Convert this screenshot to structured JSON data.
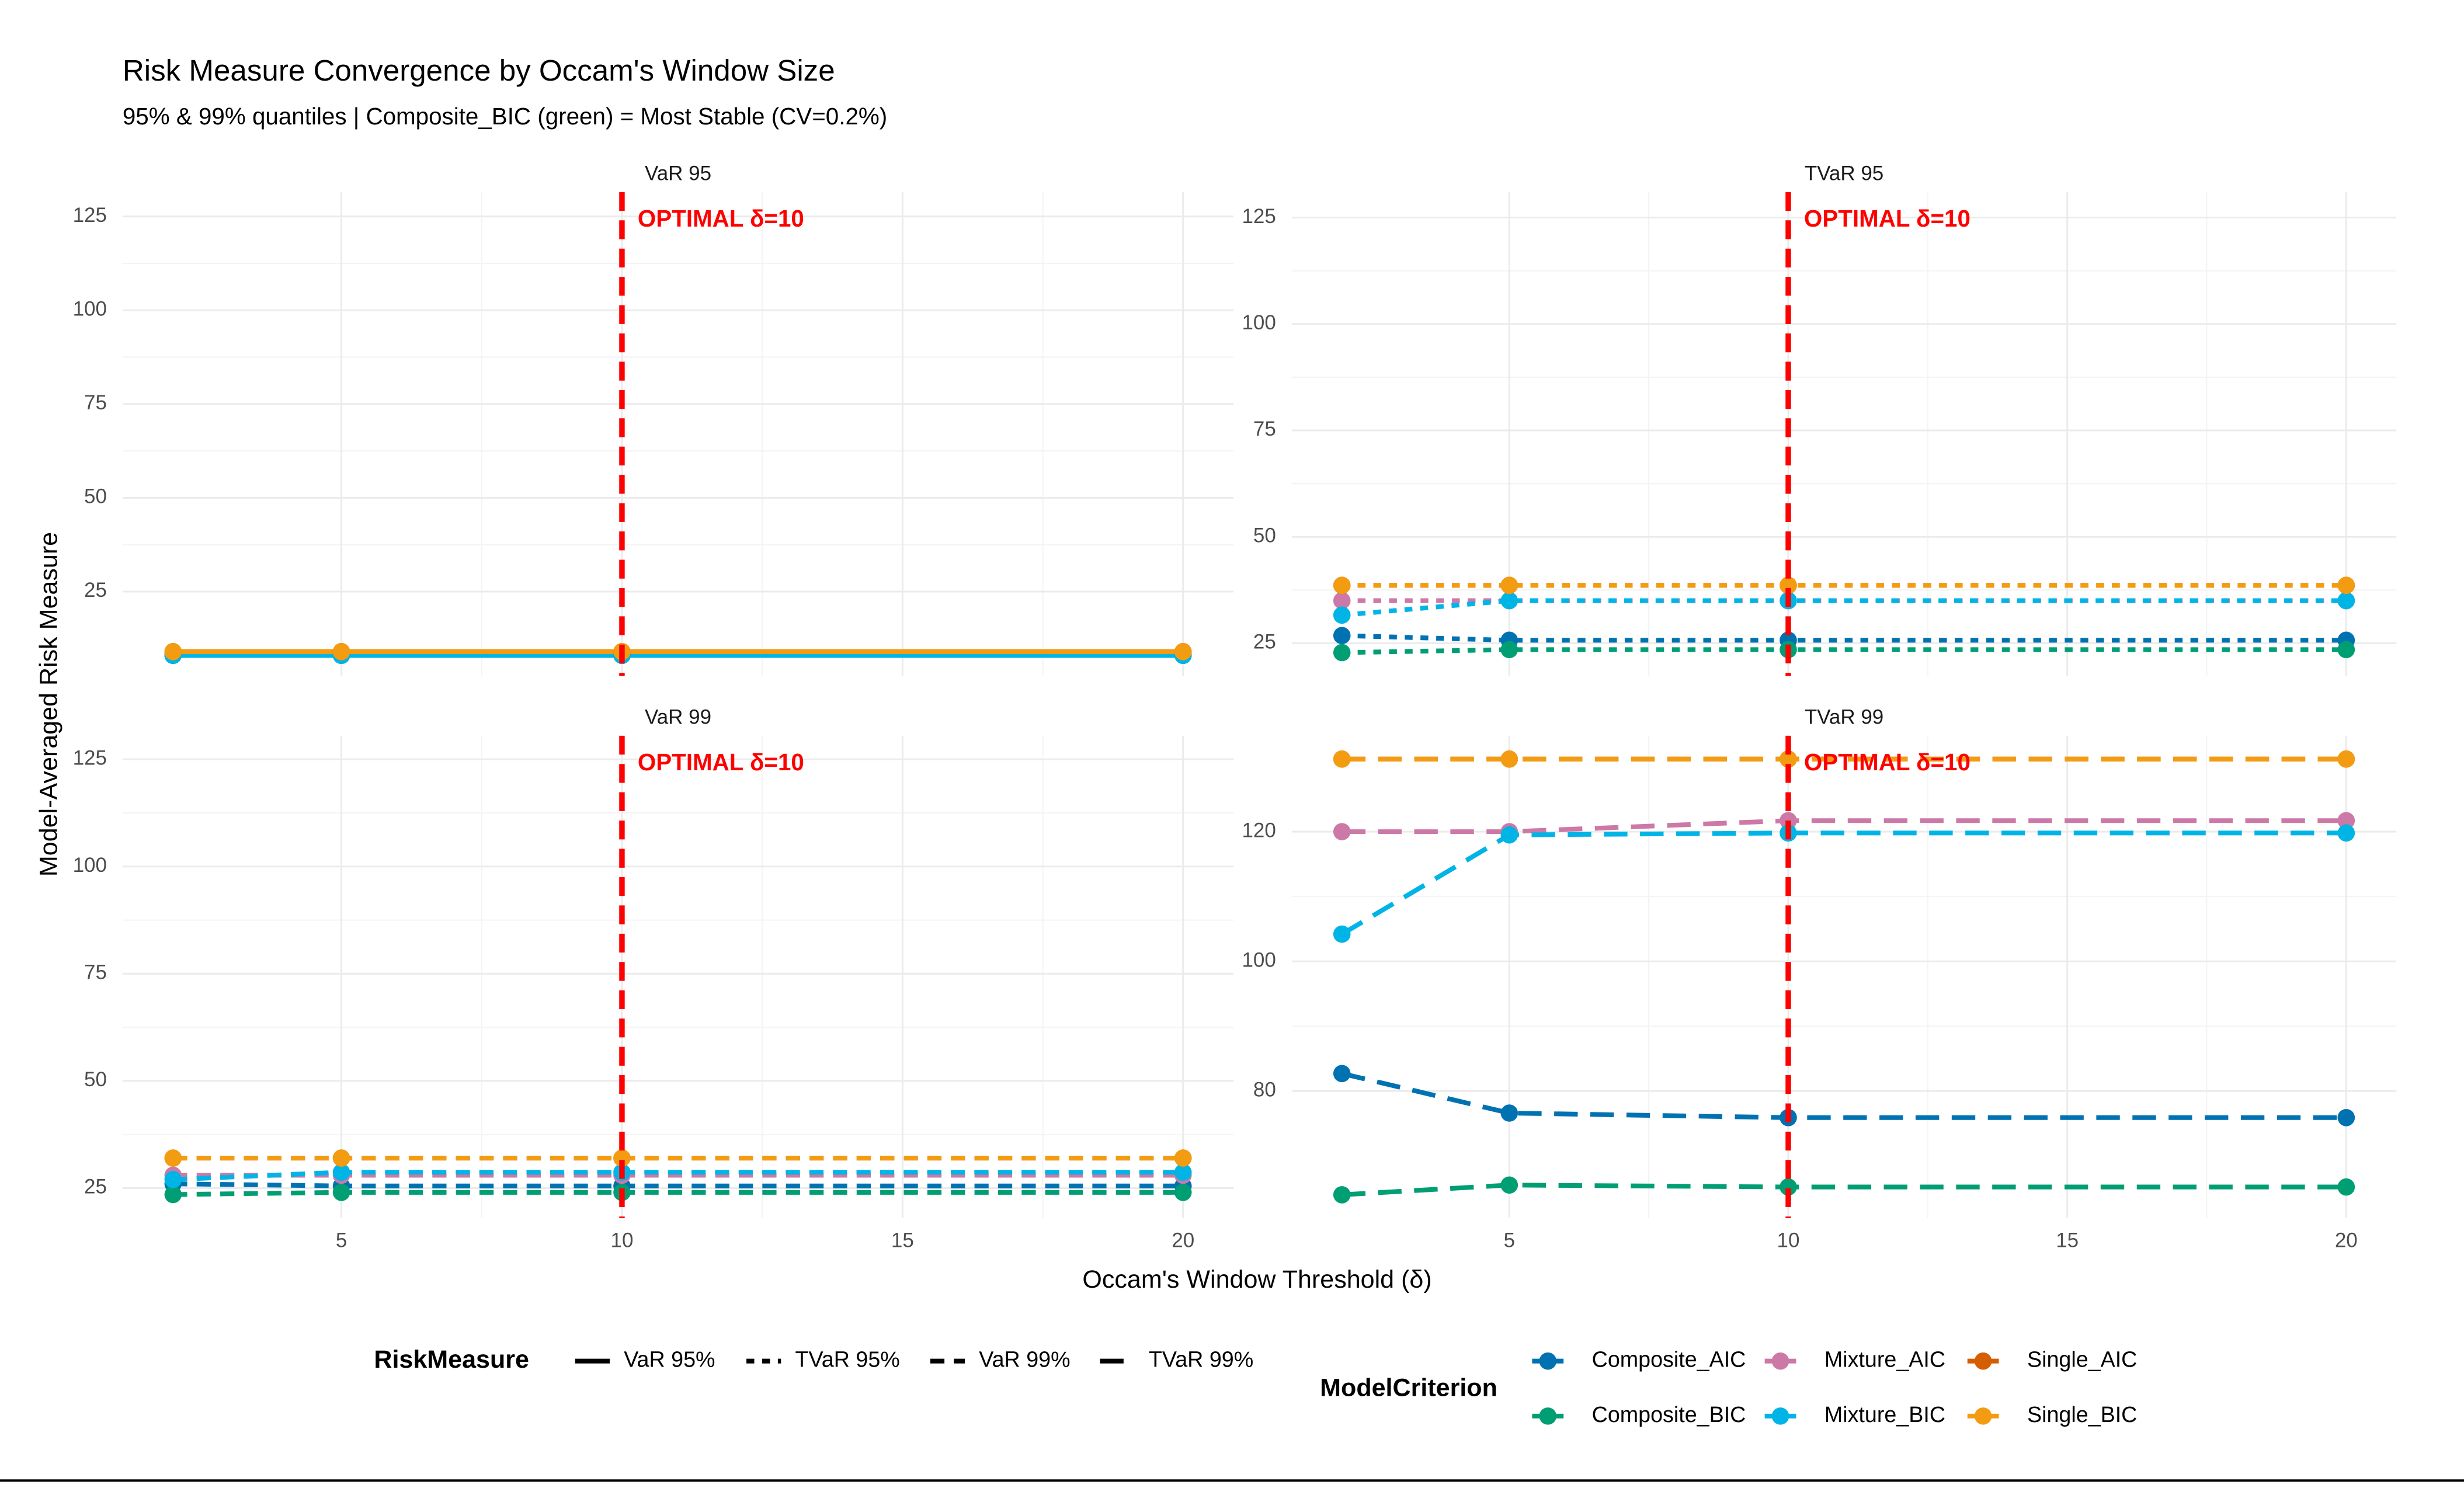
{
  "figure": {
    "title": "Risk Measure Convergence by Occam's Window Size",
    "subtitle": "95% & 99% quantiles | Composite_BIC (green) = Most Stable (CV=0.2%)",
    "x_label": "Occam's Window Threshold (δ)",
    "y_label": "Model-Averaged Risk Measure",
    "risk_legend_title": "RiskMeasure",
    "risk_legend_entries": [
      "VaR 95%",
      "TVaR 95%",
      "VaR 99%",
      "TVaR 99%"
    ],
    "model_legend_title": "ModelCriterion"
  },
  "chart_data": [
    {
      "type": "line",
      "title": "VaR 95",
      "linetype": "solid",
      "x": [
        2,
        5,
        10,
        20
      ],
      "xlim": [
        1.1,
        20.9
      ],
      "xticks": [
        5,
        10,
        15,
        20
      ],
      "ylim": [
        2.5,
        131.5
      ],
      "yticks": [
        25,
        50,
        75,
        100,
        125
      ],
      "vline": 10,
      "annotation": "OPTIMAL δ=10",
      "grid": true,
      "series": [
        {
          "name": "Composite_AIC",
          "color": "#0072B2",
          "values": [
            8,
            8,
            8,
            8
          ]
        },
        {
          "name": "Composite_BIC",
          "color": "#009E73",
          "values": [
            8,
            8,
            8,
            8
          ]
        },
        {
          "name": "Mixture_AIC",
          "color": "#CC79A7",
          "values": [
            8.5,
            8.5,
            8.5,
            8.5
          ]
        },
        {
          "name": "Mixture_BIC",
          "color": "#00B4E6",
          "values": [
            8,
            8,
            8,
            8
          ]
        },
        {
          "name": "Single_AIC",
          "color": "#D55E00",
          "values": [
            9,
            9,
            9,
            9
          ]
        },
        {
          "name": "Single_BIC",
          "color": "#F39C12",
          "values": [
            9,
            9,
            9,
            9
          ]
        }
      ]
    },
    {
      "type": "line",
      "title": "TVaR 95",
      "linetype": "dotted",
      "x": [
        2,
        5,
        10,
        20
      ],
      "xlim": [
        1.1,
        20.9
      ],
      "xticks": [
        5,
        10,
        15,
        20
      ],
      "ylim": [
        17.3,
        131
      ],
      "yticks": [
        25,
        50,
        75,
        100,
        125
      ],
      "vline": 10,
      "annotation": "OPTIMAL δ=10",
      "grid": true,
      "series": [
        {
          "name": "Composite_AIC",
          "color": "#0072B2",
          "values": [
            26.8,
            25.7,
            25.7,
            25.7
          ]
        },
        {
          "name": "Composite_BIC",
          "color": "#009E73",
          "values": [
            22.8,
            23.5,
            23.5,
            23.5
          ]
        },
        {
          "name": "Mixture_AIC",
          "color": "#CC79A7",
          "values": [
            35,
            35,
            35,
            35
          ]
        },
        {
          "name": "Mixture_BIC",
          "color": "#00B4E6",
          "values": [
            31.6,
            35,
            35,
            35
          ]
        },
        {
          "name": "Single_AIC",
          "color": "#D55E00",
          "values": [
            38.6,
            38.6,
            38.6,
            38.6
          ]
        },
        {
          "name": "Single_BIC",
          "color": "#F39C12",
          "values": [
            38.6,
            38.6,
            38.6,
            38.6
          ]
        }
      ]
    },
    {
      "type": "line",
      "title": "VaR 99",
      "linetype": "dashed",
      "x": [
        2,
        5,
        10,
        20
      ],
      "xlim": [
        1.1,
        20.9
      ],
      "xticks": [
        5,
        10,
        15,
        20
      ],
      "ylim": [
        18,
        130.5
      ],
      "yticks": [
        25,
        50,
        75,
        100,
        125
      ],
      "vline": 10,
      "annotation": "OPTIMAL δ=10",
      "grid": true,
      "series": [
        {
          "name": "Composite_AIC",
          "color": "#0072B2",
          "values": [
            26,
            25.5,
            25.5,
            25.5
          ]
        },
        {
          "name": "Composite_BIC",
          "color": "#009E73",
          "values": [
            23.5,
            24,
            24,
            24
          ]
        },
        {
          "name": "Mixture_AIC",
          "color": "#CC79A7",
          "values": [
            28,
            28,
            28,
            28
          ]
        },
        {
          "name": "Mixture_BIC",
          "color": "#00B4E6",
          "values": [
            27,
            28.7,
            28.7,
            28.7
          ]
        },
        {
          "name": "Single_AIC",
          "color": "#D55E00",
          "values": [
            32,
            32,
            32,
            32
          ]
        },
        {
          "name": "Single_BIC",
          "color": "#F39C12",
          "values": [
            32,
            32,
            32,
            32
          ]
        }
      ]
    },
    {
      "type": "line",
      "title": "TVaR 99",
      "linetype": "longdash",
      "x": [
        2,
        5,
        10,
        20
      ],
      "xlim": [
        1.1,
        20.9
      ],
      "xticks": [
        5,
        10,
        15,
        20
      ],
      "ylim": [
        60.4,
        134.8
      ],
      "yticks": [
        80,
        100,
        120
      ],
      "vline": 10,
      "annotation": "OPTIMAL δ=10",
      "grid": true,
      "series": [
        {
          "name": "Composite_AIC",
          "color": "#0072B2",
          "values": [
            82.7,
            76.6,
            75.9,
            75.9
          ]
        },
        {
          "name": "Composite_BIC",
          "color": "#009E73",
          "values": [
            64,
            65.5,
            65.2,
            65.2
          ]
        },
        {
          "name": "Mixture_AIC",
          "color": "#CC79A7",
          "values": [
            120,
            120,
            121.7,
            121.7
          ]
        },
        {
          "name": "Mixture_BIC",
          "color": "#00B4E6",
          "values": [
            104.2,
            119.5,
            119.8,
            119.8
          ]
        },
        {
          "name": "Single_AIC",
          "color": "#D55E00",
          "values": [
            131.2,
            131.2,
            131.2,
            131.2
          ]
        },
        {
          "name": "Single_BIC",
          "color": "#F39C12",
          "values": [
            131.2,
            131.2,
            131.2,
            131.2
          ]
        }
      ]
    }
  ]
}
